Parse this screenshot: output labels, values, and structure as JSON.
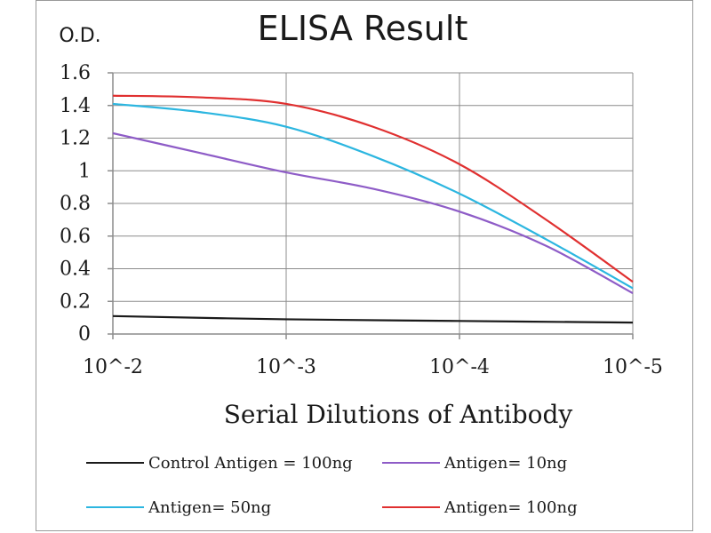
{
  "chart_data": {
    "type": "line",
    "title": "ELISA Result",
    "ylabel": "O.D.",
    "xlabel": "Serial Dilutions  of Antibody",
    "categories": [
      "10^-2",
      "10^-3",
      "10^-4",
      "10^-5"
    ],
    "ylim": [
      0,
      1.6
    ],
    "yticks": [
      "0",
      "0.2",
      "0.4",
      "0.6",
      "0.8",
      "1",
      "1.2",
      "1.4",
      "1.6"
    ],
    "grid": true,
    "legend_position": "bottom",
    "series": [
      {
        "name": "Control Antigen = 100ng",
        "color": "#1a1a1a",
        "x": [
          0,
          1,
          2,
          3
        ],
        "values": [
          0.11,
          0.09,
          0.08,
          0.07
        ]
      },
      {
        "name": "Antigen= 10ng",
        "color": "#8e5cc7",
        "x": [
          0,
          0.5,
          1,
          1.5,
          2,
          2.5,
          3
        ],
        "values": [
          1.23,
          1.11,
          0.99,
          0.89,
          0.75,
          0.54,
          0.25
        ]
      },
      {
        "name": "Antigen= 50ng",
        "color": "#2cb6e0",
        "x": [
          0,
          0.5,
          1,
          1.5,
          2,
          2.5,
          3
        ],
        "values": [
          1.41,
          1.36,
          1.27,
          1.09,
          0.86,
          0.58,
          0.28
        ]
      },
      {
        "name": "Antigen= 100ng",
        "color": "#e03030",
        "x": [
          0,
          0.5,
          1,
          1.5,
          2,
          2.5,
          3
        ],
        "values": [
          1.46,
          1.45,
          1.41,
          1.27,
          1.04,
          0.7,
          0.32
        ]
      }
    ]
  }
}
